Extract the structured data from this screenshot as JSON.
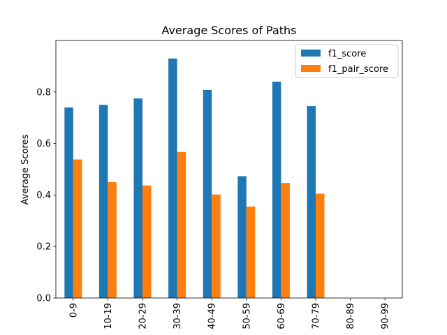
{
  "chart_data": {
    "type": "bar",
    "title": "Average Scores of Paths",
    "xlabel": "",
    "ylabel": "Average Scores",
    "ylim": [
      0,
      1.0
    ],
    "yticks": [
      0.0,
      0.2,
      0.4,
      0.6,
      0.8
    ],
    "ytick_labels": [
      "0.0",
      "0.2",
      "0.4",
      "0.6",
      "0.8"
    ],
    "categories": [
      "0-9",
      "10-19",
      "20-29",
      "30-39",
      "40-49",
      "50-59",
      "60-69",
      "70-79",
      "80-89",
      "90-99"
    ],
    "series": [
      {
        "name": "f1_score",
        "color": "#1f77b4",
        "values": [
          0.74,
          0.75,
          0.775,
          0.93,
          0.808,
          0.473,
          0.84,
          0.745,
          null,
          null
        ]
      },
      {
        "name": "f1_pair_score",
        "color": "#ff7f0e",
        "values": [
          0.538,
          0.45,
          0.437,
          0.567,
          0.402,
          0.355,
          0.447,
          0.405,
          null,
          null
        ]
      }
    ],
    "legend": "top-right",
    "grid": false
  }
}
